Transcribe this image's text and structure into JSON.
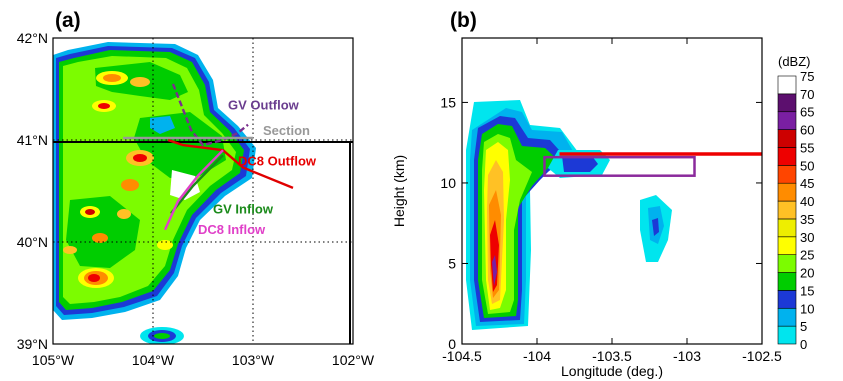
{
  "chart_data": [
    {
      "type": "heatmap",
      "panel_label": "(a)",
      "description_kind": "map",
      "x_ticks": [
        {
          "value": -105,
          "label": "105°W"
        },
        {
          "value": -104,
          "label": "104°W"
        },
        {
          "value": -103,
          "label": "103°W"
        },
        {
          "value": -102,
          "label": "102°W"
        }
      ],
      "y_ticks": [
        {
          "value": 39,
          "label": "39°N"
        },
        {
          "value": 40,
          "label": "40°N"
        },
        {
          "value": 41,
          "label": "41°N"
        },
        {
          "value": 42,
          "label": "42°N"
        }
      ],
      "xlim": [
        -105,
        -102
      ],
      "ylim": [
        39,
        42
      ],
      "grid": true,
      "annotations": [
        {
          "text": "GV Outflow",
          "color": "#6a3d8f",
          "x": -103.25,
          "y": 41.3
        },
        {
          "text": "Section",
          "color": "#999999",
          "x": -102.9,
          "y": 41.05
        },
        {
          "text": "DC8 Outflow",
          "color": "#e60000",
          "x": -103.15,
          "y": 40.75
        },
        {
          "text": "GV Inflow",
          "color": "#1a8a1a",
          "x": -103.4,
          "y": 40.28
        },
        {
          "text": "DC8 Inflow",
          "color": "#e040c8",
          "x": -103.55,
          "y": 40.08
        }
      ],
      "tracks": [
        {
          "name": "GV Outflow",
          "color": "#7a2e8c",
          "points": [
            [
              -103.8,
              41.55
            ],
            [
              -103.7,
              41.3
            ],
            [
              -103.62,
              41.1
            ],
            [
              -103.5,
              40.95
            ],
            [
              -103.3,
              41.0
            ],
            [
              -103.15,
              41.07
            ],
            [
              -103.05,
              41.15
            ]
          ]
        },
        {
          "name": "Section",
          "color": "#999999",
          "points": [
            [
              -104.3,
              41.02
            ],
            [
              -103.0,
              41.02
            ]
          ]
        },
        {
          "name": "DC8 Outflow",
          "color": "#e00000",
          "points": [
            [
              -103.85,
              41.0
            ],
            [
              -103.7,
              40.95
            ],
            [
              -103.3,
              40.9
            ],
            [
              -103.1,
              40.73
            ],
            [
              -102.6,
              40.53
            ]
          ]
        },
        {
          "name": "GV Inflow",
          "color": "#1a8a1a",
          "points": [
            [
              -103.82,
              40.28
            ],
            [
              -103.6,
              40.55
            ],
            [
              -103.3,
              40.85
            ]
          ]
        },
        {
          "name": "DC8 Inflow",
          "color": "#e040c8",
          "points": [
            [
              -103.88,
              40.12
            ],
            [
              -103.75,
              40.4
            ],
            [
              -103.55,
              40.65
            ],
            [
              -103.3,
              40.9
            ]
          ]
        }
      ]
    },
    {
      "type": "heatmap",
      "panel_label": "(b)",
      "xlabel": "Longitude (deg.)",
      "ylabel": "Height (km)",
      "xlim": [
        -104.5,
        -102.5
      ],
      "ylim": [
        0,
        19
      ],
      "x_ticks": [
        -104.5,
        -104,
        -103.5,
        -103,
        -102.5
      ],
      "x_tick_labels": [
        "-104.5",
        "-104",
        "-103.5",
        "-103",
        "-102.5"
      ],
      "y_ticks": [
        0,
        5,
        10,
        15
      ],
      "y_tick_labels": [
        "0",
        "5",
        "10",
        "15"
      ],
      "colorbar": {
        "title": "(dBZ)",
        "levels": [
          0,
          5,
          10,
          15,
          20,
          25,
          30,
          35,
          40,
          45,
          50,
          55,
          60,
          65,
          70,
          75
        ],
        "level_labels": [
          "0",
          "5",
          "10",
          "15",
          "20",
          "25",
          "30",
          "35",
          "40",
          "45",
          "50",
          "55",
          "60",
          "65",
          "70",
          "75"
        ],
        "colors": [
          "#00e5ee",
          "#00b2ee",
          "#1c39d6",
          "#00cd00",
          "#7cfc00",
          "#ffff00",
          "#eeee00",
          "#ffc125",
          "#ff8c00",
          "#ff4500",
          "#ee0000",
          "#cd0000",
          "#7a1fa2",
          "#5c0f6e",
          "#ffffff"
        ]
      },
      "flight_levels": [
        {
          "name": "DC8",
          "color": "#ee0000",
          "x_start": -103.85,
          "x_end": -102.5,
          "height_km": 11.8
        },
        {
          "name": "GV",
          "color": "#8b2a9c",
          "x_start": -103.95,
          "x_end": -102.95,
          "y_min_km": 10.45,
          "y_max_km": 11.6
        }
      ]
    }
  ]
}
